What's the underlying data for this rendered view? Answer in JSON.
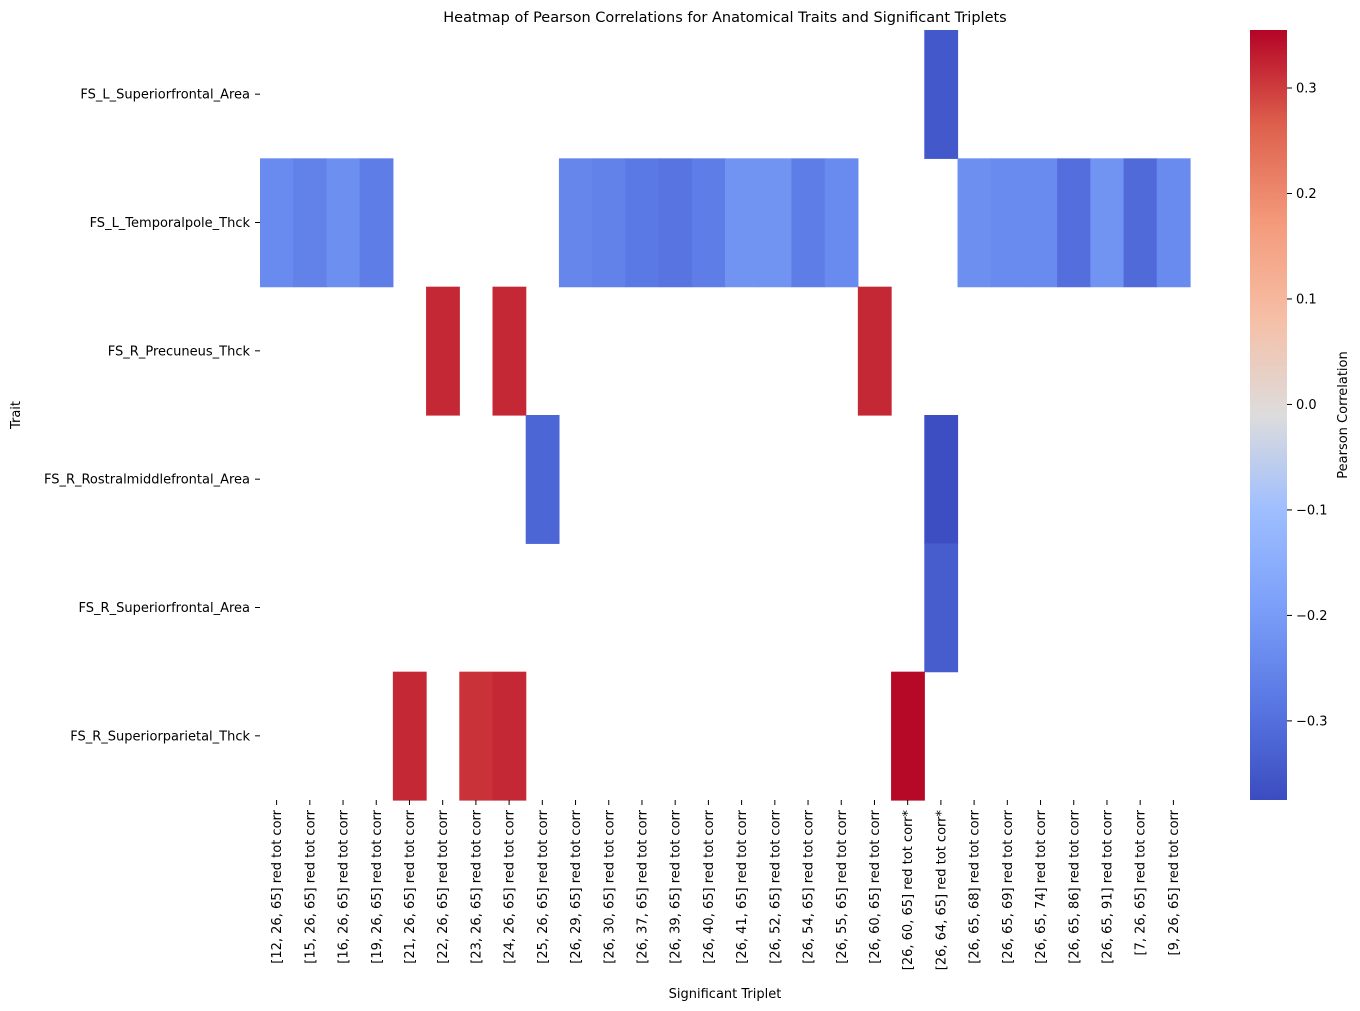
{
  "chart_data": {
    "type": "heatmap",
    "title": "Heatmap of Pearson Correlations for Anatomical Traits and Significant Triplets",
    "xlabel": "Significant Triplet",
    "ylabel": "Trait",
    "colorbar_label": "Pearson Correlation",
    "colormap": "coolwarm",
    "vmin": -0.375,
    "vmax": 0.355,
    "colorbar_ticks": [
      0.3,
      0.2,
      0.1,
      0.0,
      -0.1,
      -0.2,
      -0.3
    ],
    "colorbar_tick_labels": [
      "0.3",
      "0.2",
      "0.1",
      "0.0",
      "−0.1",
      "−0.2",
      "−0.3"
    ],
    "rows": [
      "FS_L_Superiorfrontal_Area",
      "FS_L_Temporalpole_Thck",
      "FS_R_Precuneus_Thck",
      "FS_R_Rostralmiddlefrontal_Area",
      "FS_R_Superiorfrontal_Area",
      "FS_R_Superiorparietal_Thck"
    ],
    "columns": [
      "[12, 26, 65] red tot corr",
      "[15, 26, 65] red tot corr",
      "[16, 26, 65] red tot corr",
      "[19, 26, 65] red tot corr",
      "[21, 26, 65] red tot corr",
      "[22, 26, 65] red tot corr",
      "[23, 26, 65] red tot corr",
      "[24, 26, 65] red tot corr",
      "[25, 26, 65] red tot corr",
      "[26, 29, 65] red tot corr",
      "[26, 30, 65] red tot corr",
      "[26, 37, 65] red tot corr",
      "[26, 39, 65] red tot corr",
      "[26, 40, 65] red tot corr",
      "[26, 41, 65] red tot corr",
      "[26, 52, 65] red tot corr",
      "[26, 54, 65] red tot corr",
      "[26, 55, 65] red tot corr",
      "[26, 60, 65] red tot corr",
      "[26, 60, 65] red tot corr*",
      "[26, 64, 65] red tot corr*",
      "[26, 65, 68] red tot corr",
      "[26, 65, 69] red tot corr",
      "[26, 65, 74] red tot corr",
      "[26, 65, 86] red tot corr",
      "[26, 65, 91] red tot corr",
      "[7, 26, 65] red tot corr",
      "[9, 26, 65] red tot corr"
    ],
    "values": [
      [
        null,
        null,
        null,
        null,
        null,
        null,
        null,
        null,
        null,
        null,
        null,
        null,
        null,
        null,
        null,
        null,
        null,
        null,
        null,
        null,
        -0.35,
        null,
        null,
        null,
        null,
        null,
        null,
        null
      ],
      [
        -0.24,
        -0.26,
        -0.23,
        -0.27,
        null,
        null,
        null,
        null,
        null,
        -0.25,
        -0.26,
        -0.28,
        -0.29,
        -0.27,
        -0.22,
        -0.22,
        -0.27,
        -0.24,
        null,
        null,
        null,
        -0.23,
        -0.24,
        -0.24,
        -0.3,
        -0.22,
        -0.31,
        -0.24
      ],
      [
        null,
        null,
        null,
        null,
        null,
        0.32,
        null,
        0.32,
        null,
        null,
        null,
        null,
        null,
        null,
        null,
        null,
        null,
        null,
        0.32,
        null,
        null,
        null,
        null,
        null,
        null,
        null,
        null,
        null
      ],
      [
        null,
        null,
        null,
        null,
        null,
        null,
        null,
        null,
        -0.32,
        null,
        null,
        null,
        null,
        null,
        null,
        null,
        null,
        null,
        null,
        null,
        -0.37,
        null,
        null,
        null,
        null,
        null,
        null,
        null
      ],
      [
        null,
        null,
        null,
        null,
        null,
        null,
        null,
        null,
        null,
        null,
        null,
        null,
        null,
        null,
        null,
        null,
        null,
        null,
        null,
        null,
        -0.34,
        null,
        null,
        null,
        null,
        null,
        null,
        null
      ],
      [
        null,
        null,
        null,
        null,
        0.32,
        null,
        0.31,
        0.32,
        null,
        null,
        null,
        null,
        null,
        null,
        null,
        null,
        null,
        null,
        null,
        0.35,
        null,
        null,
        null,
        null,
        null,
        null,
        null,
        null
      ]
    ]
  }
}
